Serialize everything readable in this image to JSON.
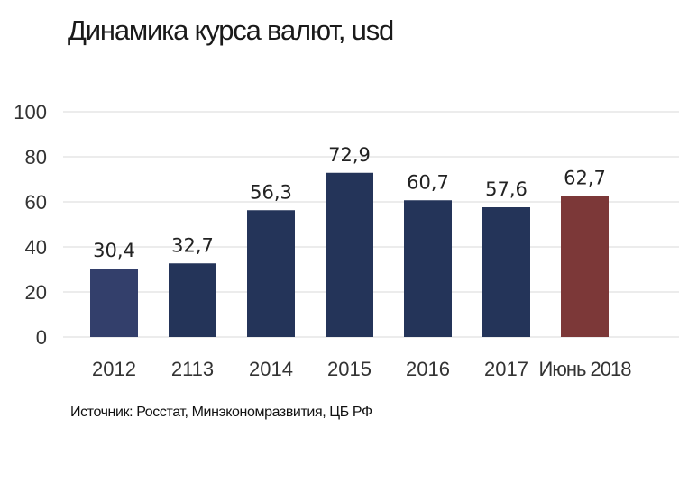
{
  "chart_data": {
    "type": "bar",
    "title": "Динамика курса валют, usd",
    "categories": [
      "2012",
      "2113",
      "2014",
      "2015",
      "2016",
      "2017",
      "Июнь 2018"
    ],
    "values": [
      30.4,
      32.7,
      56.3,
      72.9,
      60.7,
      57.6,
      62.7
    ],
    "value_labels": [
      "30,4",
      "32,7",
      "56,3",
      "72,9",
      "60,7",
      "57,6",
      "62,7"
    ],
    "bar_colors": [
      "#333f6b",
      "#243459",
      "#243459",
      "#243459",
      "#243459",
      "#243459",
      "#7c3838"
    ],
    "ylim": [
      0,
      100
    ],
    "yticks": [
      "0",
      "20",
      "40",
      "60",
      "80",
      "100"
    ],
    "ytick_values": [
      0,
      20,
      40,
      60,
      80,
      100
    ],
    "grid": true,
    "legend": "none"
  },
  "source": "Источник: Росстат, Минэкономразвития, ЦБ РФ"
}
